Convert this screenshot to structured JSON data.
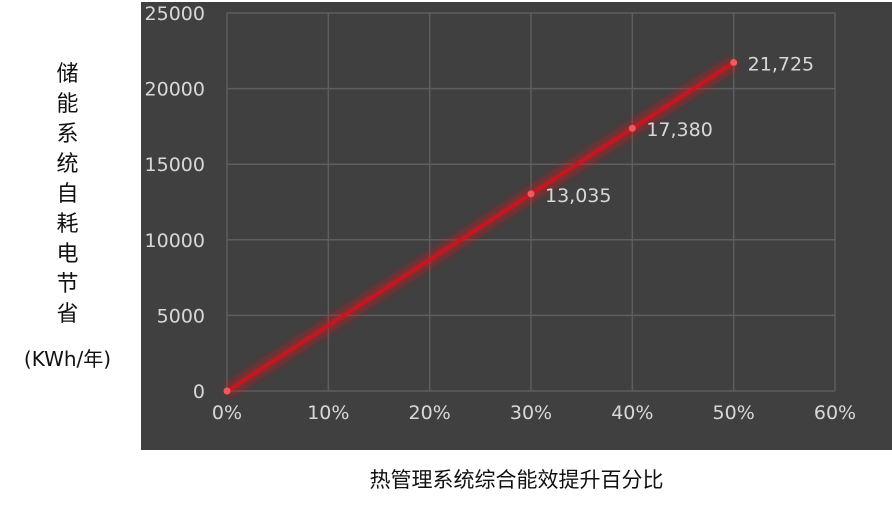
{
  "chart_data": {
    "type": "line",
    "title": "",
    "xlabel": "热管理系统综合能效提升百分比",
    "ylabel": "储能系统自耗电节省",
    "ylabel_unit": "(KWh/年)",
    "x": [
      0,
      30,
      40,
      50
    ],
    "y": [
      0,
      13035,
      17380,
      21725
    ],
    "data_labels": [
      "",
      "13,035",
      "17,380",
      "21,725"
    ],
    "xlim": [
      0,
      60
    ],
    "ylim": [
      0,
      25000
    ],
    "x_ticks": [
      "0%",
      "10%",
      "20%",
      "30%",
      "40%",
      "50%",
      "60%"
    ],
    "y_ticks": [
      "0",
      "5000",
      "10000",
      "15000",
      "20000",
      "25000"
    ],
    "grid": true,
    "legend": "none",
    "colors": {
      "line": "#d0121f",
      "background": "#404040",
      "grid": "#5e5e5e",
      "text": "#d8d8d8"
    }
  }
}
